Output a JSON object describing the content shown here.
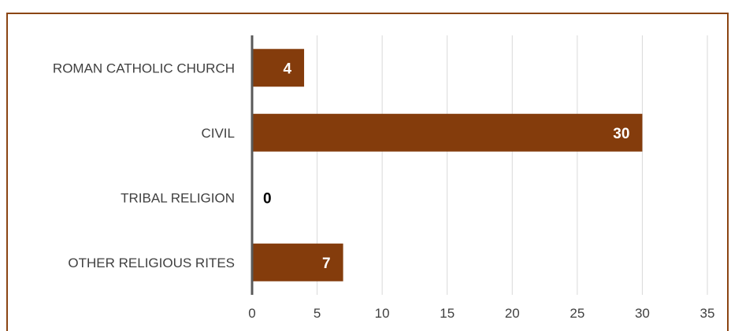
{
  "chart_data": {
    "type": "bar",
    "orientation": "horizontal",
    "categories": [
      "ROMAN CATHOLIC CHURCH",
      "CIVIL",
      "TRIBAL RELIGION",
      "OTHER RELIGIOUS RITES"
    ],
    "values": [
      4,
      30,
      0,
      7
    ],
    "data_labels": [
      "4",
      "30",
      "0",
      "7"
    ],
    "x_ticks": [
      "0",
      "5",
      "10",
      "15",
      "20",
      "25",
      "30",
      "35"
    ],
    "xlim": [
      0,
      35
    ],
    "title": "",
    "xlabel": "",
    "ylabel": "",
    "grid": "vertical",
    "legend": "none",
    "colors": {
      "bar": "#843C0C",
      "frame": "#8B4513",
      "gridline": "#D9D9D9",
      "axis": "#595959",
      "label_inside": "#FFFFFF",
      "label_outside": "#000000",
      "text": "#404040"
    }
  }
}
